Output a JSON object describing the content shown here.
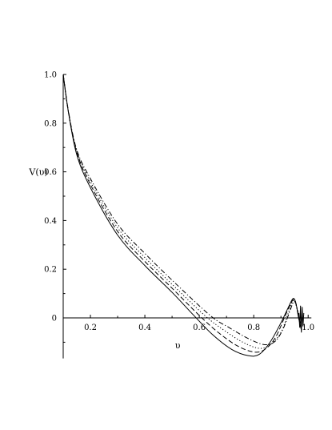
{
  "chart_data": {
    "type": "line",
    "title": "",
    "xlabel": "υ",
    "ylabel": "V(υ)",
    "xlim": [
      0.1,
      1.0
    ],
    "ylim": [
      -0.16,
      1.0
    ],
    "x_ticks": [
      "0.2",
      "0.4",
      "0.6",
      "0.8",
      "1.0"
    ],
    "y_ticks": [
      "0",
      "0.2",
      "0.4",
      "0.6",
      "0.8",
      "1.0"
    ],
    "grid": false,
    "series": [
      {
        "style": "solid",
        "points": [
          [
            0.1,
            1.0
          ],
          [
            0.12,
            0.84
          ],
          [
            0.15,
            0.67
          ],
          [
            0.2,
            0.535
          ],
          [
            0.3,
            0.34
          ],
          [
            0.4,
            0.215
          ],
          [
            0.5,
            0.105
          ],
          [
            0.58,
            0.01
          ],
          [
            0.65,
            -0.07
          ],
          [
            0.72,
            -0.13
          ],
          [
            0.78,
            -0.155
          ],
          [
            0.82,
            -0.15
          ],
          [
            0.86,
            -0.1
          ],
          [
            0.9,
            -0.02
          ],
          [
            0.93,
            0.05
          ],
          [
            0.945,
            0.08
          ],
          [
            0.955,
            0.06
          ],
          [
            0.965,
            0.0
          ],
          [
            0.975,
            -0.05
          ]
        ]
      },
      {
        "style": "dash",
        "points": [
          [
            0.1,
            1.0
          ],
          [
            0.12,
            0.84
          ],
          [
            0.15,
            0.68
          ],
          [
            0.2,
            0.548
          ],
          [
            0.3,
            0.355
          ],
          [
            0.4,
            0.232
          ],
          [
            0.5,
            0.122
          ],
          [
            0.6,
            0.01
          ],
          [
            0.67,
            -0.06
          ],
          [
            0.74,
            -0.115
          ],
          [
            0.8,
            -0.14
          ],
          [
            0.84,
            -0.13
          ],
          [
            0.88,
            -0.08
          ],
          [
            0.92,
            0.02
          ],
          [
            0.945,
            0.075
          ],
          [
            0.955,
            0.06
          ],
          [
            0.965,
            0.0
          ],
          [
            0.975,
            -0.045
          ]
        ]
      },
      {
        "style": "dot",
        "points": [
          [
            0.1,
            1.0
          ],
          [
            0.12,
            0.84
          ],
          [
            0.15,
            0.685
          ],
          [
            0.2,
            0.56
          ],
          [
            0.3,
            0.37
          ],
          [
            0.4,
            0.248
          ],
          [
            0.5,
            0.138
          ],
          [
            0.62,
            0.01
          ],
          [
            0.69,
            -0.05
          ],
          [
            0.76,
            -0.1
          ],
          [
            0.82,
            -0.125
          ],
          [
            0.86,
            -0.11
          ],
          [
            0.9,
            -0.06
          ],
          [
            0.93,
            0.03
          ],
          [
            0.945,
            0.07
          ],
          [
            0.955,
            0.055
          ],
          [
            0.965,
            0.0
          ],
          [
            0.975,
            -0.04
          ]
        ]
      },
      {
        "style": "dash-dot",
        "points": [
          [
            0.1,
            1.0
          ],
          [
            0.12,
            0.845
          ],
          [
            0.15,
            0.69
          ],
          [
            0.2,
            0.572
          ],
          [
            0.3,
            0.385
          ],
          [
            0.4,
            0.265
          ],
          [
            0.5,
            0.155
          ],
          [
            0.64,
            0.01
          ],
          [
            0.71,
            -0.04
          ],
          [
            0.78,
            -0.085
          ],
          [
            0.84,
            -0.11
          ],
          [
            0.88,
            -0.095
          ],
          [
            0.91,
            -0.04
          ],
          [
            0.935,
            0.035
          ],
          [
            0.948,
            0.068
          ],
          [
            0.957,
            0.05
          ],
          [
            0.967,
            0.0
          ],
          [
            0.977,
            -0.035
          ]
        ]
      }
    ]
  }
}
